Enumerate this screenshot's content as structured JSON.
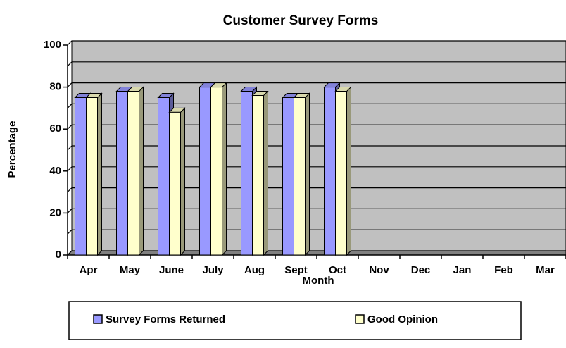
{
  "chart_data": {
    "type": "bar3d",
    "title": "Customer Survey Forms",
    "x_label": "Month",
    "y_label": "Percentage",
    "categories": [
      "Apr",
      "May",
      "June",
      "July",
      "Aug",
      "Sept",
      "Oct",
      "Nov",
      "Dec",
      "Jan",
      "Feb",
      "Mar"
    ],
    "series": [
      {
        "name": "Survey Forms Returned",
        "color": "#9999ff",
        "values": [
          75,
          78,
          75,
          80,
          78,
          75,
          80,
          null,
          null,
          null,
          null,
          null
        ]
      },
      {
        "name": "Good Opinion",
        "color": "#ffffcc",
        "values": [
          75,
          78,
          68,
          80,
          76,
          75,
          78,
          null,
          null,
          null,
          null,
          null
        ]
      }
    ],
    "ylim": [
      0,
      100
    ],
    "yticks": [
      0,
      20,
      40,
      60,
      80,
      100
    ],
    "yminor_ticks": [
      10,
      30,
      50,
      70,
      90
    ],
    "grid": true,
    "wall_color": "#c0c0c0",
    "legend": "bottom"
  }
}
